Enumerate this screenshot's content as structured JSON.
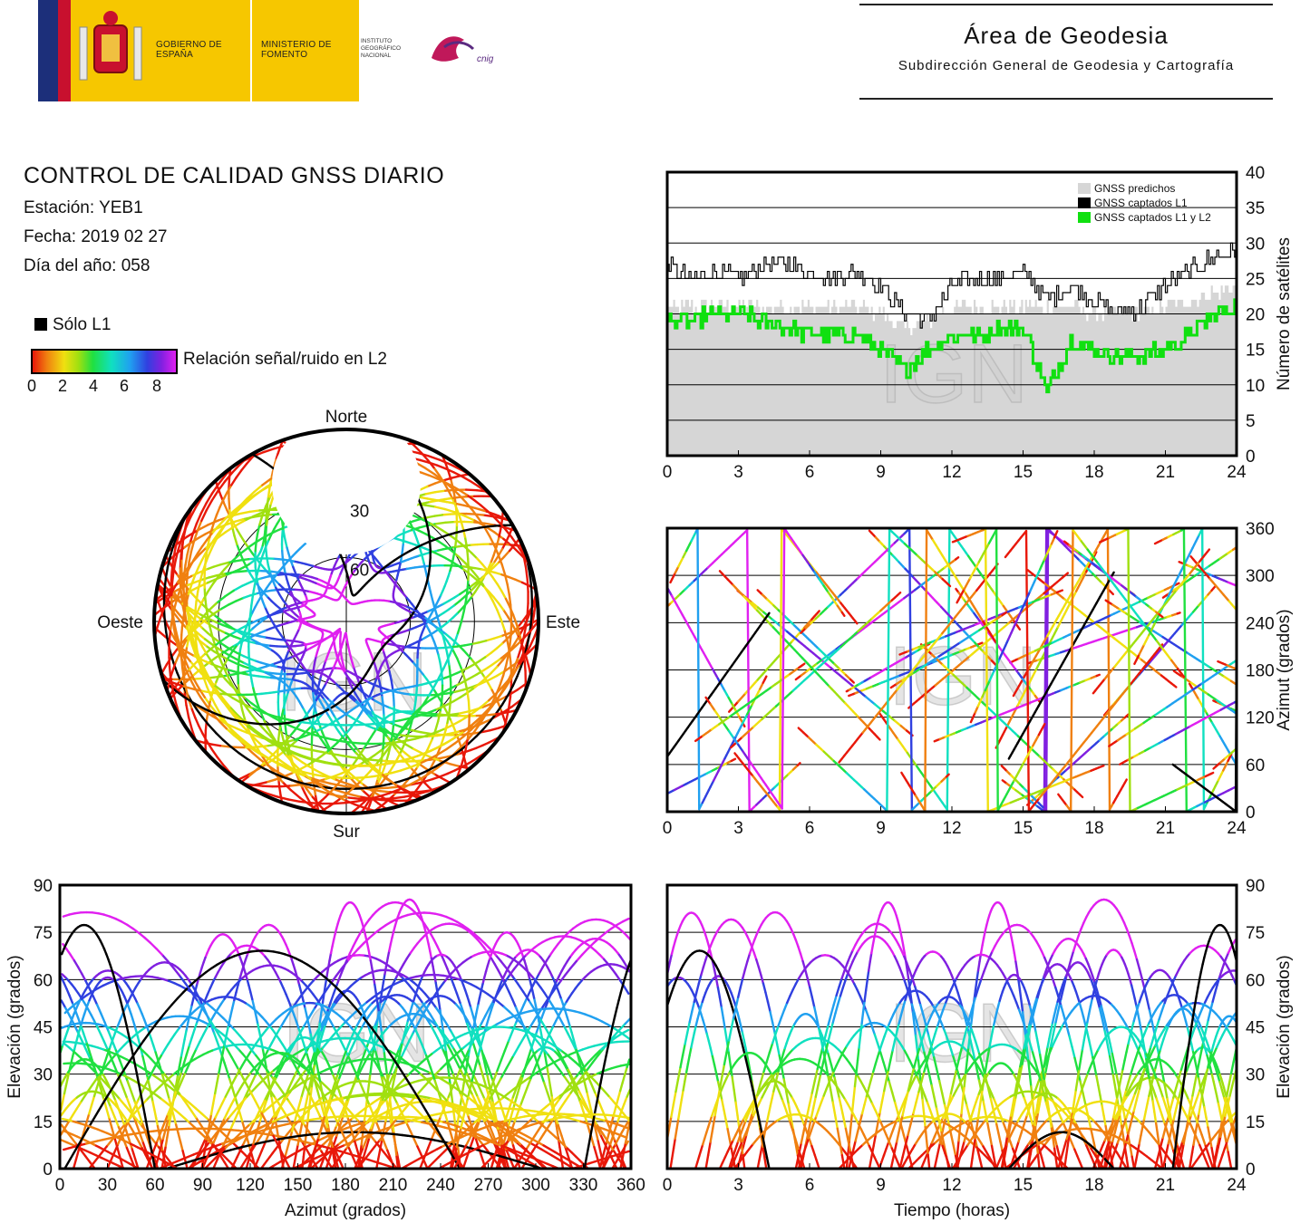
{
  "header": {
    "logo_gobierno": "GOBIERNO DE ESPAÑA",
    "logo_ministerio": "MINISTERIO DE FOMENTO",
    "logo_instituto": "INSTITUTO GEOGRÁFICO NACIONAL",
    "logo_cnig": "cnig",
    "area_title": "Área de Geodesia",
    "area_subtitle": "Subdirección General de Geodesia y Cartografía"
  },
  "report": {
    "title": "CONTROL DE CALIDAD GNSS DIARIO",
    "station": "Estación: YEB1",
    "date": "Fecha: 2019 02 27",
    "doy": "Día del año: 058"
  },
  "legend": {
    "solo_l1": "Sólo L1",
    "snr_label": "Relación señal/ruido en L2",
    "snr_ticks": [
      "0",
      "2",
      "4",
      "6",
      "8"
    ],
    "colors": {
      "l1_only": "#000000",
      "predicted": "#d6d6d6",
      "l1_l2": "#10e010"
    }
  },
  "watermark": "IGN",
  "chart_data": [
    {
      "type": "area",
      "panel": "satellite-count",
      "ylabel": "Número de satélites",
      "xlim": [
        0,
        24
      ],
      "ylim": [
        0,
        40
      ],
      "x_ticks": [
        "0",
        "3",
        "6",
        "9",
        "12",
        "15",
        "18",
        "21",
        "24"
      ],
      "y_ticks": [
        "0",
        "5",
        "10",
        "15",
        "20",
        "25",
        "30",
        "35",
        "40"
      ],
      "grid": true,
      "legend_placement": "top-right",
      "x": [
        0,
        1,
        2,
        3,
        4,
        5,
        6,
        7,
        8,
        9,
        10,
        11,
        12,
        13,
        14,
        15,
        16,
        17,
        18,
        19,
        20,
        21,
        22,
        23,
        24
      ],
      "series": [
        {
          "name": "GNSS predichos",
          "values": [
            21,
            21,
            21,
            21,
            21,
            21,
            21,
            21,
            21,
            20,
            18,
            19,
            21,
            21,
            21,
            21,
            21,
            21,
            20,
            20,
            20,
            21,
            22,
            23,
            24
          ]
        },
        {
          "name": "GNSS captados L1",
          "values": [
            27,
            25,
            26,
            25,
            27,
            27,
            26,
            25,
            26,
            24,
            20,
            19,
            24,
            25,
            25,
            26,
            22,
            24,
            22,
            20,
            21,
            24,
            26,
            28,
            29
          ]
        },
        {
          "name": "GNSS captados L1 y L2",
          "values": [
            19,
            19,
            20,
            20,
            19,
            18,
            17,
            17,
            17,
            15,
            12,
            15,
            17,
            17,
            18,
            18,
            9,
            16,
            15,
            14,
            14,
            15,
            17,
            20,
            21
          ]
        }
      ]
    },
    {
      "type": "scatter",
      "panel": "skyplot",
      "direction_labels": {
        "north": "Norte",
        "east": "Este",
        "south": "Sur",
        "west": "Oeste"
      },
      "ring_labels": [
        "30",
        "60"
      ]
    },
    {
      "type": "scatter",
      "panel": "azimuth-vs-time",
      "ylabel": "Azimut (grados)",
      "xlim": [
        0,
        24
      ],
      "ylim": [
        0,
        360
      ],
      "x_ticks": [
        "0",
        "3",
        "6",
        "9",
        "12",
        "15",
        "18",
        "21",
        "24"
      ],
      "y_ticks": [
        "0",
        "60",
        "120",
        "180",
        "240",
        "300",
        "360"
      ],
      "grid": true
    },
    {
      "type": "scatter",
      "panel": "elevation-vs-azimuth",
      "xlabel": "Azimut (grados)",
      "ylabel": "Elevación (grados)",
      "xlim": [
        0,
        360
      ],
      "ylim": [
        0,
        90
      ],
      "x_ticks": [
        "0",
        "30",
        "60",
        "90",
        "120",
        "150",
        "180",
        "210",
        "240",
        "270",
        "300",
        "330",
        "360"
      ],
      "y_ticks": [
        "0",
        "15",
        "30",
        "45",
        "60",
        "75",
        "90"
      ],
      "grid": true
    },
    {
      "type": "scatter",
      "panel": "elevation-vs-time",
      "xlabel": "Tiempo (horas)",
      "ylabel": "Elevación (grados)",
      "xlim": [
        0,
        24
      ],
      "ylim": [
        0,
        90
      ],
      "x_ticks": [
        "0",
        "3",
        "6",
        "9",
        "12",
        "15",
        "18",
        "21",
        "24"
      ],
      "y_ticks": [
        "0",
        "15",
        "30",
        "45",
        "60",
        "75",
        "90"
      ],
      "grid": true
    }
  ]
}
